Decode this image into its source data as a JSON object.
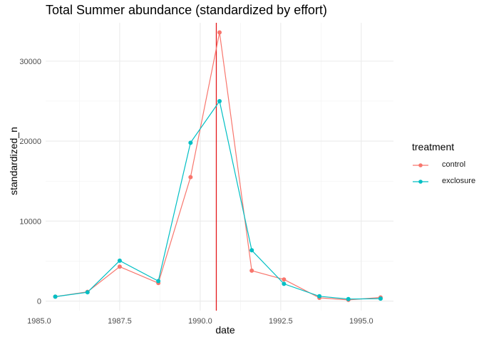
{
  "chart_data": {
    "type": "line",
    "title": "Total Summer abundance (standardized by effort)",
    "xlabel": "date",
    "ylabel": "standardized_n",
    "xlim": [
      1985.2,
      1996.0
    ],
    "ylim": [
      -1200,
      34800
    ],
    "x_ticks": [
      1985.0,
      1987.5,
      1990.0,
      1992.5,
      1995.0
    ],
    "x_tick_labels": [
      "1985.0",
      "1987.5",
      "1990.0",
      "1992.5",
      "1995.0"
    ],
    "y_ticks": [
      0,
      10000,
      20000,
      30000
    ],
    "y_tick_labels": [
      "0",
      "10000",
      "20000",
      "30000"
    ],
    "grid": true,
    "legend": {
      "title": "treatment",
      "position": "right"
    },
    "vline": {
      "x": 1990.5,
      "color": "#e41a1c"
    },
    "series": [
      {
        "name": "control",
        "color": "#F8766D",
        "x": [
          1985.5,
          1986.5,
          1987.5,
          1988.7,
          1989.7,
          1990.6,
          1991.6,
          1992.6,
          1993.7,
          1994.6,
          1995.6
        ],
        "values": [
          550,
          1150,
          4300,
          2250,
          15500,
          33600,
          3800,
          2700,
          400,
          150,
          450
        ]
      },
      {
        "name": "exclosure",
        "color": "#00BFC4",
        "x": [
          1985.5,
          1986.5,
          1987.5,
          1988.7,
          1989.7,
          1990.6,
          1991.6,
          1992.6,
          1993.7,
          1994.6,
          1995.6
        ],
        "values": [
          550,
          1100,
          5050,
          2500,
          19800,
          25000,
          6350,
          2150,
          600,
          250,
          300
        ]
      }
    ]
  }
}
